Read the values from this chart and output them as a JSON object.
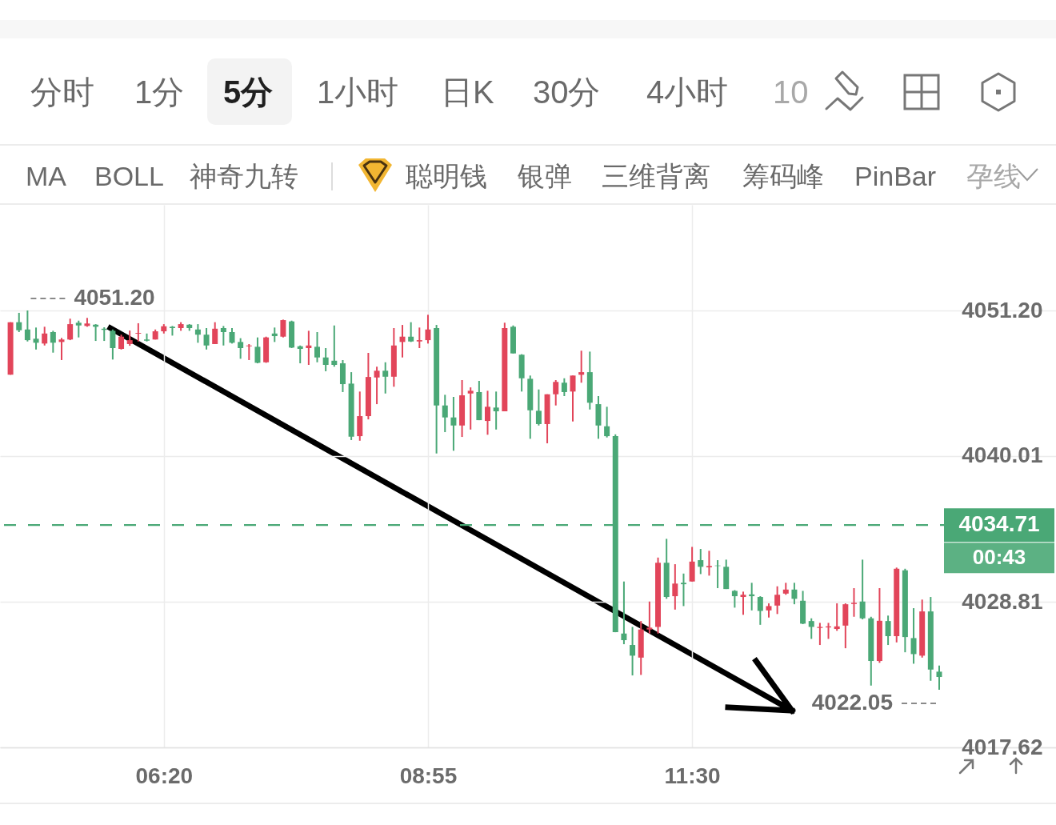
{
  "chart_data": [
    {
      "type": "other",
      "annotations": [
        "分时",
        "1分",
        "5分",
        "1小时",
        "日K",
        "30分",
        "4小时",
        "10"
      ]
    },
    {
      "type": "other",
      "annotations": [
        "MA",
        "BOLL",
        "神奇九转",
        "聪明钱",
        "银弹",
        "三维背离",
        "筹码峰",
        "PinBar",
        "孕线"
      ]
    },
    {
      "type": "candlestick",
      "x": [
        4.8333,
        4.9167,
        5,
        5.0833,
        5.1667,
        5.25,
        5.3333,
        5.4167,
        5.5,
        5.5833,
        5.6667,
        5.75,
        5.8333,
        5.9167,
        6,
        6.0833,
        6.1667,
        6.25,
        6.3333,
        6.4167,
        6.5,
        6.5833,
        6.6667,
        6.75,
        6.8333,
        6.9167,
        7,
        7.0833,
        7.1667,
        7.25,
        7.3333,
        7.4167,
        7.5,
        7.5833,
        7.6667,
        7.75,
        7.8333,
        7.9167,
        8,
        8.0833,
        8.1667,
        8.25,
        8.3333,
        8.4167,
        8.5,
        8.5833,
        8.6667,
        8.75,
        8.8333,
        8.9167,
        9,
        9.0833,
        9.1667,
        9.25,
        9.3333,
        9.4167,
        9.5,
        9.5833,
        9.6667,
        9.75,
        9.8333,
        9.9167,
        10,
        10.0833,
        10.1667,
        10.25,
        10.3333,
        10.4167,
        10.5,
        10.5833,
        10.6667,
        10.75,
        10.8333,
        10.9167,
        11,
        11.0833,
        11.1667,
        11.25,
        11.3333,
        11.4167,
        11.5,
        11.5833,
        11.6667,
        11.75,
        11.8333,
        11.9167,
        12,
        12.0833,
        12.1667,
        12.25,
        12.3333,
        12.4167,
        12.5,
        12.5833,
        12.6667,
        12.75,
        12.8333,
        12.9167,
        13,
        13.0833,
        13.1667,
        13.25,
        13.3333,
        13.4167,
        13.5,
        13.5833,
        13.6667,
        13.75,
        13.8333,
        13.9167
      ],
      "ohlc": [
        [
          4046.26,
          4050.3,
          4046.26,
          4050.3
        ],
        [
          4050.3,
          4051.02,
          4049.54,
          4049.68
        ],
        [
          4049.74,
          4051.2,
          4048.82,
          4048.92
        ],
        [
          4049.03,
          4049.89,
          4048.2,
          4048.72
        ],
        [
          4048.66,
          4049.95,
          4048.51,
          4049.43
        ],
        [
          4049.54,
          4049.64,
          4047.96,
          4048.72
        ],
        [
          4048.78,
          4049.09,
          4047.39,
          4048.97
        ],
        [
          4048.97,
          4050.57,
          4048.92,
          4050.15
        ],
        [
          4050.26,
          4050.42,
          4049.13,
          4050.05
        ],
        [
          4050.01,
          4050.63,
          4049.95,
          4050.2
        ],
        [
          4050.11,
          4050.15,
          4048.86,
          4049.95
        ],
        [
          4049.8,
          4049.91,
          4048.86,
          4049.71
        ],
        [
          4049.64,
          4049.74,
          4047.43,
          4048.31
        ],
        [
          4048.25,
          4049.34,
          4048.2,
          4049.19
        ],
        [
          4048.62,
          4049.66,
          4048.49,
          4048.92
        ],
        [
          4049.42,
          4050.22,
          4048.82,
          4049.48
        ],
        [
          4048.97,
          4049.43,
          4048.82,
          4048.88
        ],
        [
          4048.97,
          4049.74,
          4048.97,
          4049.6
        ],
        [
          4049.6,
          4050.15,
          4049.43,
          4049.99
        ],
        [
          4049.95,
          4050.01,
          4049.27,
          4049.85
        ],
        [
          4049.85,
          4050.3,
          4049.64,
          4050.15
        ],
        [
          4050.11,
          4050.15,
          4049.64,
          4049.85
        ],
        [
          4049.74,
          4050.15,
          4048.72,
          4049.34
        ],
        [
          4049.34,
          4049.85,
          4048.2,
          4048.51
        ],
        [
          4048.62,
          4050.3,
          4048.62,
          4049.8
        ],
        [
          4049.85,
          4050.01,
          4048.51,
          4049.54
        ],
        [
          4049.54,
          4049.85,
          4048.66,
          4048.72
        ],
        [
          4048.78,
          4049.07,
          4047.49,
          4048.31
        ],
        [
          4048.45,
          4048.62,
          4047.39,
          4048.51
        ],
        [
          4048.41,
          4049.13,
          4047.14,
          4047.18
        ],
        [
          4047.22,
          4049.19,
          4047.18,
          4049.13
        ],
        [
          4049.43,
          4049.89,
          4048.78,
          4049.23
        ],
        [
          4049.19,
          4050.5,
          4049.13,
          4050.46
        ],
        [
          4050.36,
          4050.42,
          4048.31,
          4048.35
        ],
        [
          4048.45,
          4048.51,
          4047.14,
          4048.25
        ],
        [
          4048.31,
          4049.64,
          4047.02,
          4048.51
        ],
        [
          4048.41,
          4049.54,
          4047.22,
          4047.59
        ],
        [
          4047.59,
          4048.31,
          4046.53,
          4047.02
        ],
        [
          4047.34,
          4050.05,
          4046.88,
          4047.02
        ],
        [
          4047.14,
          4047.39,
          4044.93,
          4045.54
        ],
        [
          4045.58,
          4046.46,
          4041.24,
          4041.5
        ],
        [
          4041.54,
          4044.97,
          4041.19,
          4043.08
        ],
        [
          4043.08,
          4047.94,
          4042.83,
          4046.09
        ],
        [
          4046.05,
          4046.88,
          4044.0,
          4046.57
        ],
        [
          4046.57,
          4047.22,
          4044.82,
          4046.11
        ],
        [
          4046.11,
          4049.85,
          4045.34,
          4048.51
        ],
        [
          4048.78,
          4050.09,
          4047.59,
          4049.19
        ],
        [
          4049.19,
          4050.3,
          4048.78,
          4048.82
        ],
        [
          4048.82,
          4049.89,
          4048.31,
          4048.92
        ],
        [
          4048.92,
          4050.87,
          4048.66,
          4049.74
        ],
        [
          4049.85,
          4050.09,
          4040.21,
          4043.9
        ],
        [
          4043.9,
          4044.72,
          4041.85,
          4042.98
        ],
        [
          4042.98,
          4044.56,
          4040.42,
          4042.36
        ],
        [
          4042.36,
          4045.85,
          4041.48,
          4044.68
        ],
        [
          4044.82,
          4045.29,
          4042.05,
          4045.03
        ],
        [
          4044.93,
          4045.79,
          4042.77,
          4042.77
        ],
        [
          4042.71,
          4045.03,
          4041.65,
          4043.8
        ],
        [
          4043.74,
          4044.97,
          4042.05,
          4043.45
        ],
        [
          4043.45,
          4050.26,
          4043.45,
          4049.85
        ],
        [
          4049.95,
          4050.05,
          4047.9,
          4047.9
        ],
        [
          4047.8,
          4047.84,
          4044.97,
          4045.99
        ],
        [
          4045.95,
          4046.2,
          4041.34,
          4043.53
        ],
        [
          4043.49,
          4045.13,
          4042.36,
          4042.47
        ],
        [
          4042.47,
          4044.76,
          4040.99,
          4044.76
        ],
        [
          4044.76,
          4045.85,
          4043.9,
          4045.71
        ],
        [
          4045.65,
          4045.99,
          4044.62,
          4044.93
        ],
        [
          4044.97,
          4046.2,
          4042.67,
          4046.2
        ],
        [
          4046.26,
          4048.11,
          4045.65,
          4046.46
        ],
        [
          4046.46,
          4048.04,
          4043.59,
          4044.11
        ],
        [
          4044.0,
          4044.62,
          4041.34,
          4042.36
        ],
        [
          4042.3,
          4043.8,
          4041.44,
          4041.54
        ],
        [
          4041.54,
          4041.68,
          4026.47,
          4026.47
        ],
        [
          4026.37,
          4030.37,
          4025.55,
          4025.86
        ],
        [
          4025.49,
          4026.88,
          4023.15,
          4024.67
        ],
        [
          4024.52,
          4027.33,
          4023.19,
          4026.68
        ],
        [
          4026.68,
          4028.83,
          4026.37,
          4026.82
        ],
        [
          4026.88,
          4032.21,
          4026.37,
          4031.81
        ],
        [
          4031.81,
          4033.65,
          4029.04,
          4029.18
        ],
        [
          4029.24,
          4031.7,
          4028.21,
          4030.21
        ],
        [
          4030.27,
          4030.98,
          4028.48,
          4030.16
        ],
        [
          4030.37,
          4033.03,
          4030.37,
          4031.9
        ],
        [
          4032.01,
          4032.87,
          4030.94,
          4031.5
        ],
        [
          4031.46,
          4032.73,
          4030.82,
          4031.56
        ],
        [
          4031.6,
          4032.01,
          4029.86,
          4031.56
        ],
        [
          4031.5,
          4032.05,
          4029.79,
          4029.79
        ],
        [
          4029.65,
          4029.71,
          4028.36,
          4029.24
        ],
        [
          4029.18,
          4029.59,
          4027.81,
          4029.35
        ],
        [
          4029.38,
          4030.27,
          4028.15,
          4029.24
        ],
        [
          4029.18,
          4029.24,
          4027.04,
          4028.11
        ],
        [
          4028.15,
          4028.69,
          4027.6,
          4028.48
        ],
        [
          4028.52,
          4030.0,
          4027.87,
          4029.35
        ],
        [
          4029.44,
          4030.27,
          4029.35,
          4029.75
        ],
        [
          4029.75,
          4030.27,
          4028.62,
          4029.04
        ],
        [
          4028.89,
          4029.65,
          4027.09,
          4027.13
        ],
        [
          4027.33,
          4027.54,
          4025.96,
          4026.88
        ],
        [
          4026.8,
          4027.19,
          4025.49,
          4026.88
        ],
        [
          4026.84,
          4027.19,
          4025.96,
          4026.92
        ],
        [
          4026.72,
          4028.69,
          4026.58,
          4026.92
        ],
        [
          4026.98,
          4028.69,
          4025.24,
          4028.62
        ],
        [
          4028.64,
          4029.86,
          4027.66,
          4028.73
        ],
        [
          4028.83,
          4032.05,
          4027.46,
          4027.54
        ],
        [
          4027.54,
          4027.66,
          4022.37,
          4024.26
        ],
        [
          4024.26,
          4029.86,
          4024.12,
          4027.35
        ],
        [
          4027.33,
          4027.75,
          4025.49,
          4026.17
        ],
        [
          4026.17,
          4031.44,
          4025.69,
          4031.35
        ],
        [
          4031.23,
          4031.35,
          4024.93,
          4026.1
        ],
        [
          4026.02,
          4028.32,
          4024.05,
          4024.79
        ],
        [
          4024.67,
          4028.98,
          4024.52,
          4028.07
        ],
        [
          4028.07,
          4029.18,
          4022.74,
          4023.6
        ],
        [
          4023.44,
          4023.91,
          4022.05,
          4023.03
        ]
      ],
      "colors": [
        "#e2455a",
        "#4aa876",
        "#4aa876",
        "#4aa876",
        "#e2455a",
        "#4aa876",
        "#e2455a",
        "#e2455a",
        "#4aa876",
        "#e2455a",
        "#4aa876",
        "#4aa876",
        "#4aa876",
        "#e2455a",
        "#e2455a",
        "#e2455a",
        "#4aa876",
        "#e2455a",
        "#e2455a",
        "#4aa876",
        "#e2455a",
        "#4aa876",
        "#4aa876",
        "#4aa876",
        "#e2455a",
        "#4aa876",
        "#4aa876",
        "#4aa876",
        "#e2455a",
        "#4aa876",
        "#e2455a",
        "#4aa876",
        "#e2455a",
        "#4aa876",
        "#4aa876",
        "#e2455a",
        "#4aa876",
        "#4aa876",
        "#4aa876",
        "#4aa876",
        "#4aa876",
        "#e2455a",
        "#e2455a",
        "#e2455a",
        "#4aa876",
        "#e2455a",
        "#e2455a",
        "#4aa876",
        "#e2455a",
        "#e2455a",
        "#4aa876",
        "#4aa876",
        "#4aa876",
        "#e2455a",
        "#e2455a",
        "#4aa876",
        "#e2455a",
        "#4aa876",
        "#e2455a",
        "#4aa876",
        "#4aa876",
        "#4aa876",
        "#4aa876",
        "#e2455a",
        "#e2455a",
        "#4aa876",
        "#e2455a",
        "#e2455a",
        "#4aa876",
        "#4aa876",
        "#4aa876",
        "#4aa876",
        "#4aa876",
        "#4aa876",
        "#e2455a",
        "#e2455a",
        "#e2455a",
        "#4aa876",
        "#e2455a",
        "#4aa876",
        "#e2455a",
        "#4aa876",
        "#e2455a",
        "#4aa876",
        "#4aa876",
        "#4aa876",
        "#e2455a",
        "#4aa876",
        "#4aa876",
        "#e2455a",
        "#e2455a",
        "#e2455a",
        "#4aa876",
        "#4aa876",
        "#4aa876",
        "#e2455a",
        "#e2455a",
        "#e2455a",
        "#e2455a",
        "#e2455a",
        "#4aa876",
        "#4aa876",
        "#e2455a",
        "#4aa876",
        "#e2455a",
        "#4aa876",
        "#4aa876",
        "#e2455a",
        "#4aa876",
        "#4aa876"
      ],
      "xlim": [
        4.77,
        15.02
      ],
      "xticks": [
        {
          "value": 6.3333,
          "label": "06:20"
        },
        {
          "value": 8.9167,
          "label": "08:55"
        },
        {
          "value": 11.5,
          "label": "11:30"
        }
      ],
      "ylim": [
        4017.62,
        4059.32
      ],
      "yticks": [
        4017.62,
        4028.81,
        4040.01,
        {
          "value": 4051.2,
          "label": "4051.20"
        }
      ],
      "grid": true,
      "ref_lines": [
        {
          "axis": "y",
          "value": 4034.71,
          "label": "4034.71",
          "color": "#4aa876",
          "line_style": "dashed"
        }
      ],
      "annotations": [
        {
          "text": "4051.20",
          "x": 5,
          "y": 4051.2
        },
        {
          "text": "4022.05",
          "x": 13.9167,
          "y": 4022.05
        },
        "00:43"
      ]
    }
  ]
}
